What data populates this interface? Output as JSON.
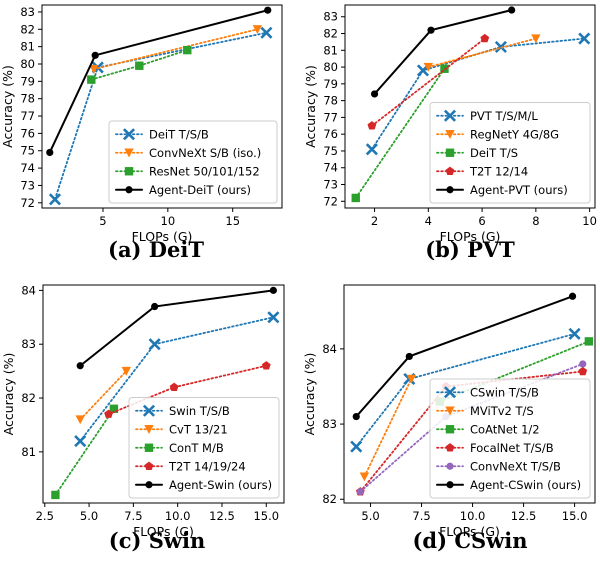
{
  "chart_data": [
    {
      "type": "line",
      "caption": "(a) DeiT",
      "xlabel": "FLOPs (G)",
      "ylabel": "Accuracy (%)",
      "xlim": [
        0.3,
        18.8
      ],
      "ylim": [
        71.7,
        83.4
      ],
      "xticks": [
        5,
        10,
        15
      ],
      "yticks": [
        72,
        73,
        74,
        75,
        76,
        77,
        78,
        79,
        80,
        81,
        82,
        83
      ],
      "legend_position": "bottom-right",
      "series": [
        {
          "name": "DeiT T/S/B",
          "color": "#1f77b4",
          "marker": "x",
          "line": "dotted",
          "x": [
            1.3,
            4.6,
            17.6
          ],
          "y": [
            72.2,
            79.8,
            81.8
          ]
        },
        {
          "name": "ConvNeXt S/B (iso.)",
          "color": "#ff7f0e",
          "marker": "v",
          "line": "dotted",
          "x": [
            4.3,
            16.9
          ],
          "y": [
            79.7,
            82.0
          ]
        },
        {
          "name": "ResNet 50/101/152",
          "color": "#2ca02c",
          "marker": "s",
          "line": "dotted",
          "x": [
            4.1,
            7.8,
            11.5
          ],
          "y": [
            79.1,
            79.9,
            80.8
          ]
        },
        {
          "name": "Agent-DeiT (ours)",
          "color": "#000000",
          "marker": "o",
          "line": "solid",
          "x": [
            0.9,
            4.4,
            17.7
          ],
          "y": [
            74.9,
            80.5,
            83.1
          ]
        }
      ]
    },
    {
      "type": "line",
      "caption": "(b) PVT",
      "xlabel": "FLOPs (G)",
      "ylabel": "Accuracy (%)",
      "xlim": [
        0.9,
        10.2
      ],
      "ylim": [
        71.6,
        83.7
      ],
      "xticks": [
        2,
        4,
        6,
        8,
        10
      ],
      "yticks": [
        72,
        73,
        74,
        75,
        76,
        77,
        78,
        79,
        80,
        81,
        82,
        83
      ],
      "legend_position": "bottom-right",
      "series": [
        {
          "name": "PVT T/S/M/L",
          "color": "#1f77b4",
          "marker": "x",
          "line": "dotted",
          "x": [
            1.9,
            3.8,
            6.7,
            9.8
          ],
          "y": [
            75.1,
            79.8,
            81.2,
            81.7
          ]
        },
        {
          "name": "RegNetY 4G/8G",
          "color": "#ff7f0e",
          "marker": "v",
          "line": "dotted",
          "x": [
            4.0,
            8.0
          ],
          "y": [
            80.0,
            81.7
          ]
        },
        {
          "name": "DeiT T/S",
          "color": "#2ca02c",
          "marker": "s",
          "line": "dotted",
          "x": [
            1.3,
            4.6
          ],
          "y": [
            72.2,
            79.9
          ]
        },
        {
          "name": "T2T 12/14",
          "color": "#d62728",
          "marker": "p",
          "line": "dotted",
          "x": [
            1.9,
            6.1
          ],
          "y": [
            76.5,
            81.7
          ]
        },
        {
          "name": "Agent-PVT (ours)",
          "color": "#000000",
          "marker": "o",
          "line": "solid",
          "x": [
            2.0,
            4.1,
            7.1
          ],
          "y": [
            78.4,
            82.2,
            83.4
          ]
        }
      ]
    },
    {
      "type": "line",
      "caption": "(c) Swin",
      "xlabel": "FLOPs (G)",
      "ylabel": "Accuracy (%)",
      "xlim": [
        2.4,
        16.0
      ],
      "ylim": [
        80.05,
        84.1
      ],
      "xticks": [
        2.5,
        5.0,
        7.5,
        10.0,
        12.5,
        15.0
      ],
      "xtick_labels": [
        "2.5",
        "5.0",
        "7.5",
        "10.0",
        "12.5",
        "15.0"
      ],
      "yticks": [
        81,
        82,
        83,
        84
      ],
      "legend_position": "bottom-right",
      "series": [
        {
          "name": "Swin T/S/B",
          "color": "#1f77b4",
          "marker": "x",
          "line": "dotted",
          "x": [
            4.5,
            8.7,
            15.4
          ],
          "y": [
            81.2,
            83.0,
            83.5
          ]
        },
        {
          "name": "CvT 13/21",
          "color": "#ff7f0e",
          "marker": "v",
          "line": "dotted",
          "x": [
            4.5,
            7.1
          ],
          "y": [
            81.6,
            82.5
          ]
        },
        {
          "name": "ConT M/B",
          "color": "#2ca02c",
          "marker": "s",
          "line": "dotted",
          "x": [
            3.1,
            6.4
          ],
          "y": [
            80.2,
            81.8
          ]
        },
        {
          "name": "T2T 14/19/24",
          "color": "#d62728",
          "marker": "p",
          "line": "dotted",
          "x": [
            6.1,
            9.8,
            15.0
          ],
          "y": [
            81.7,
            82.2,
            82.6
          ]
        },
        {
          "name": "Agent-Swin (ours)",
          "color": "#000000",
          "marker": "o",
          "line": "solid",
          "x": [
            4.5,
            8.7,
            15.4
          ],
          "y": [
            82.6,
            83.7,
            84.0
          ]
        }
      ]
    },
    {
      "type": "line",
      "caption": "(d) CSwin",
      "xlabel": "FLOPs (G)",
      "ylabel": "Accuracy (%)",
      "xlim": [
        3.7,
        16.0
      ],
      "ylim": [
        81.95,
        84.85
      ],
      "xticks": [
        5.0,
        7.5,
        10.0,
        12.5,
        15.0
      ],
      "xtick_labels": [
        "5.0",
        "7.5",
        "10.0",
        "12.5",
        "15.0"
      ],
      "yticks": [
        82,
        83,
        84
      ],
      "legend_position": "bottom-right",
      "series": [
        {
          "name": "CSwin T/S/B",
          "color": "#1f77b4",
          "marker": "x",
          "line": "dotted",
          "x": [
            4.3,
            6.9,
            15.0
          ],
          "y": [
            82.7,
            83.6,
            84.2
          ]
        },
        {
          "name": "MViTv2 T/S",
          "color": "#ff7f0e",
          "marker": "v",
          "line": "dotted",
          "x": [
            4.7,
            7.0
          ],
          "y": [
            82.3,
            83.6
          ]
        },
        {
          "name": "CoAtNet 1/2",
          "color": "#2ca02c",
          "marker": "s",
          "line": "dotted",
          "x": [
            8.4,
            15.7
          ],
          "y": [
            83.3,
            84.1
          ]
        },
        {
          "name": "FocalNet T/S/B",
          "color": "#d62728",
          "marker": "p",
          "line": "dotted",
          "x": [
            4.5,
            8.7,
            15.4
          ],
          "y": [
            82.1,
            83.5,
            83.7
          ]
        },
        {
          "name": "ConvNeXt T/S/B",
          "color": "#9467bd",
          "marker": "o",
          "line": "dotted",
          "x": [
            4.5,
            8.7,
            15.4
          ],
          "y": [
            82.1,
            83.1,
            83.8
          ]
        },
        {
          "name": "Agent-CSwin (ours)",
          "color": "#000000",
          "marker": "o",
          "line": "solid",
          "x": [
            4.3,
            6.9,
            14.9
          ],
          "y": [
            83.1,
            83.9,
            84.7
          ]
        }
      ]
    }
  ]
}
